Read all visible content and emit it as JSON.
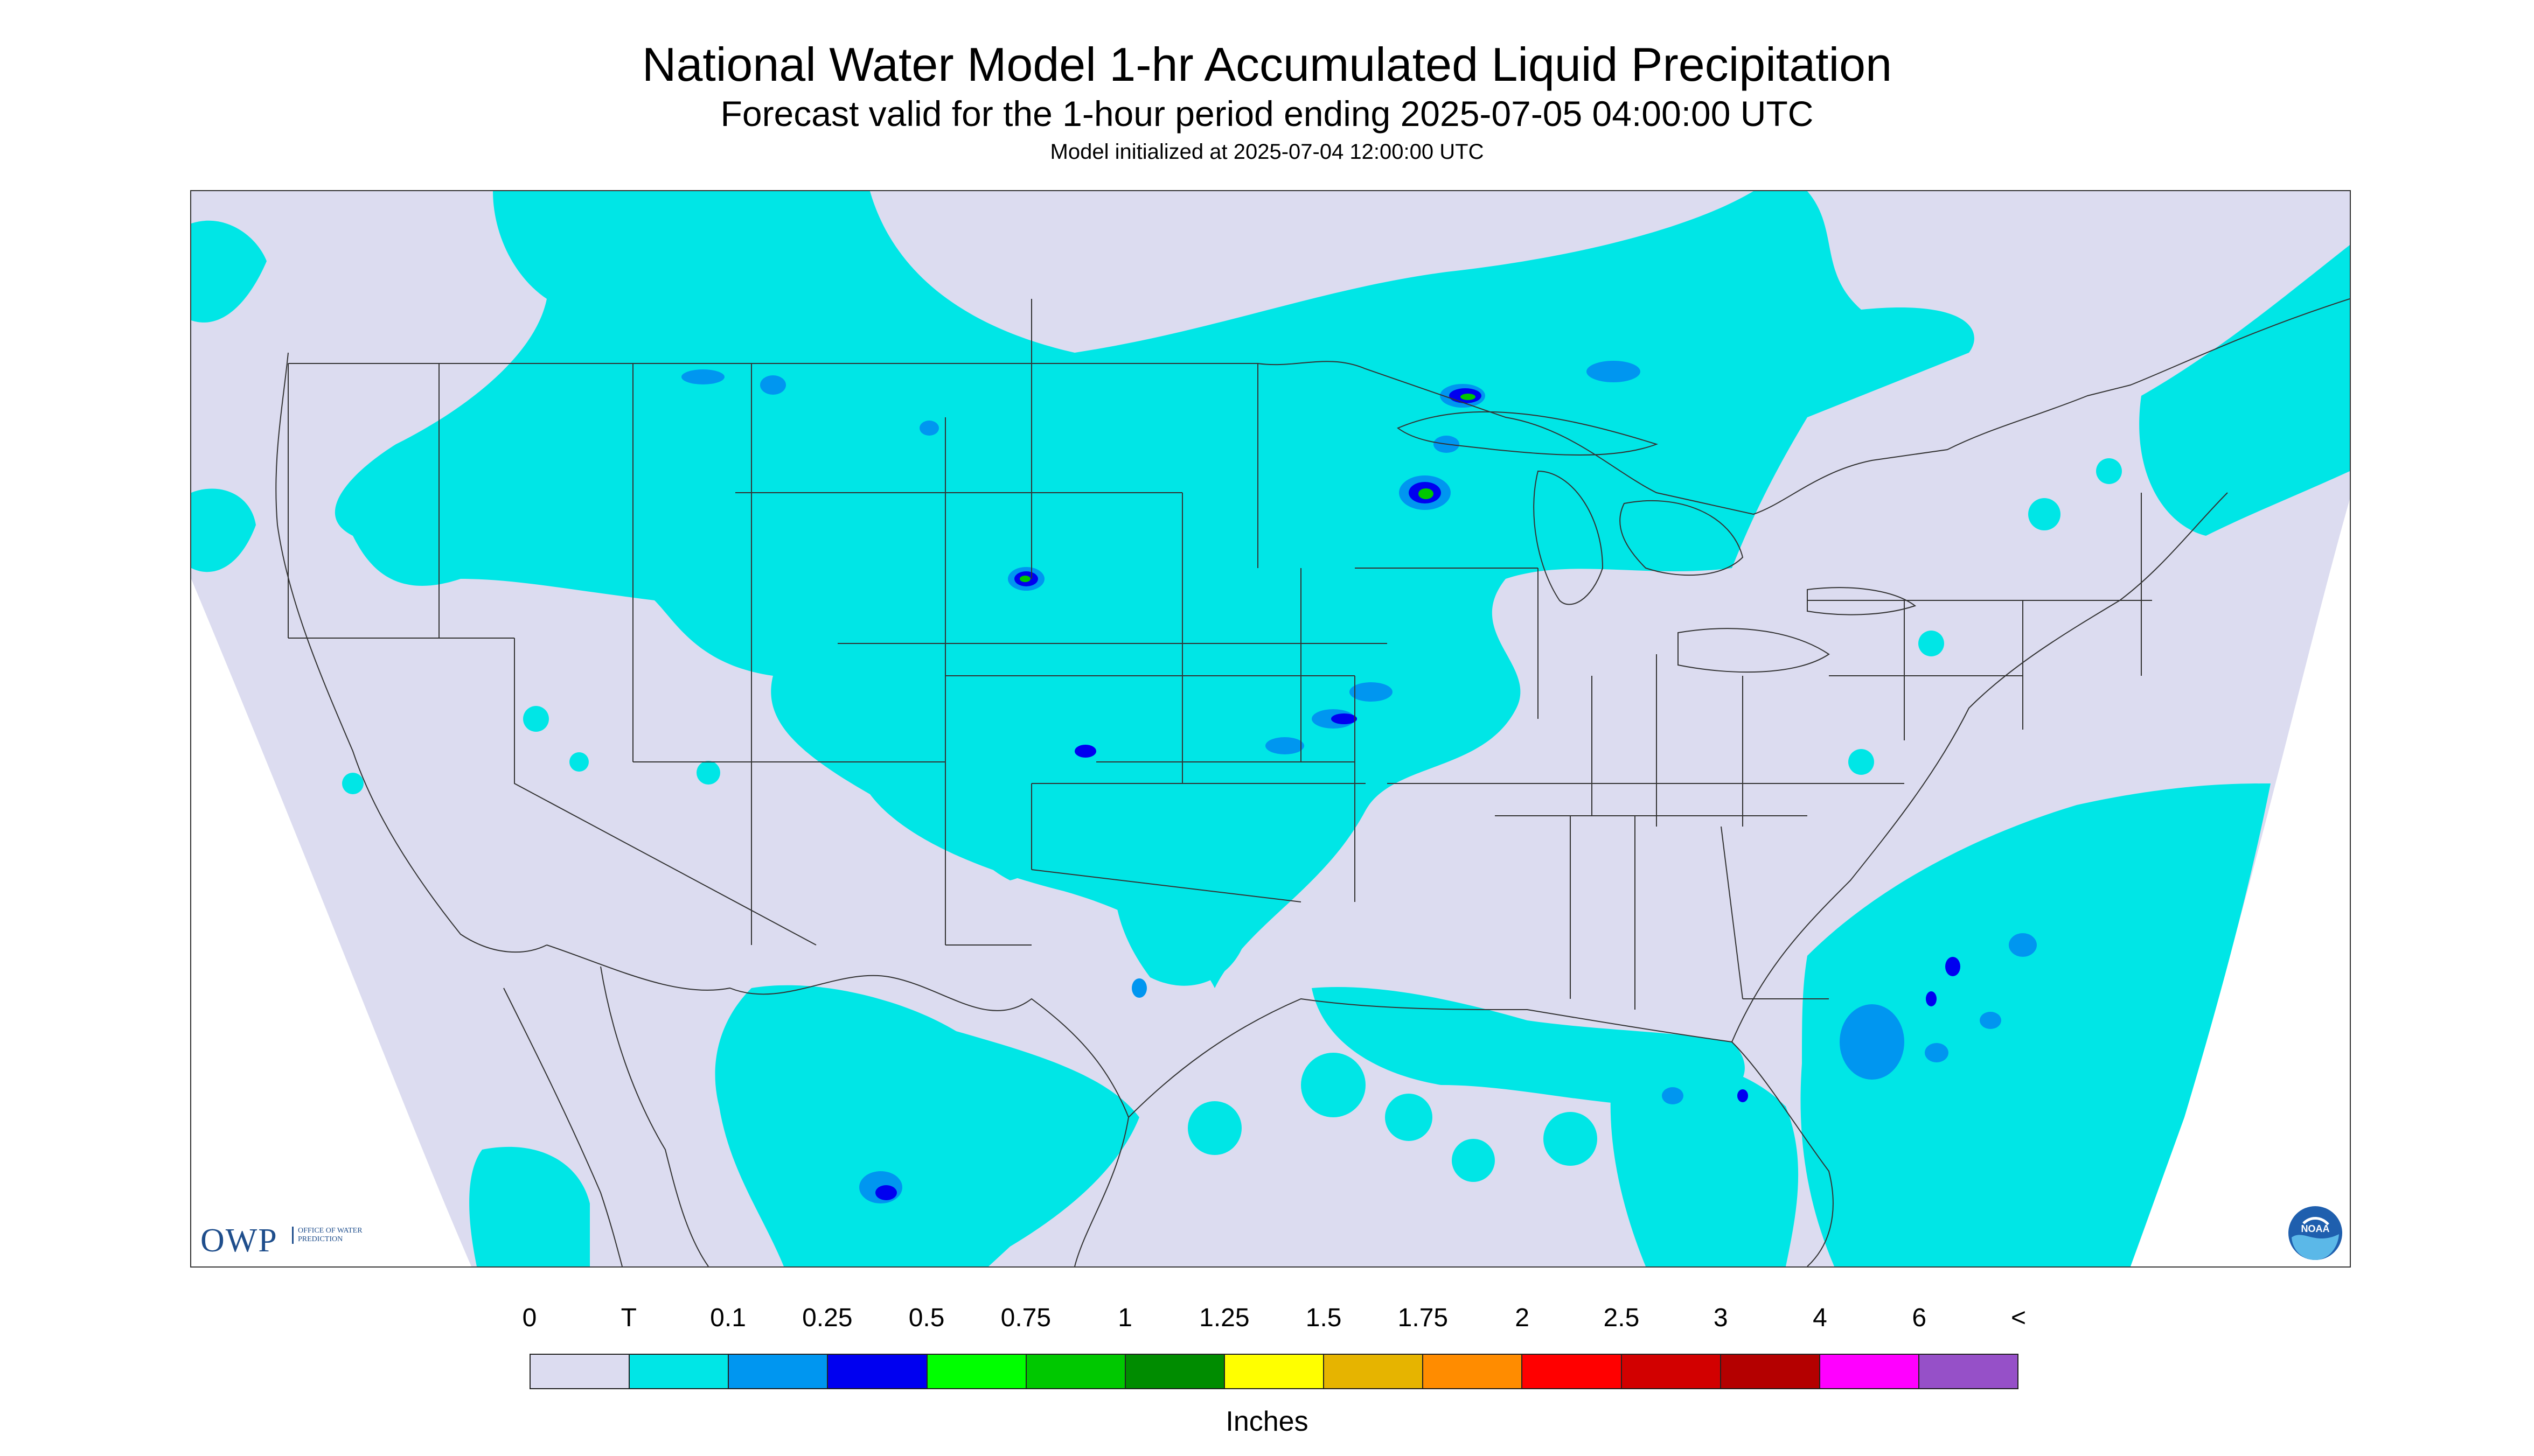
{
  "header": {
    "title": "National Water Model 1-hr Accumulated Liquid Precipitation",
    "subtitle": "Forecast valid for the 1-hour period ending 2025-07-05 04:00:00 UTC",
    "init": "Model initialized at 2025-07-04 12:00:00 UTC"
  },
  "logos": {
    "owp": "OWP",
    "owp_full": "OFFICE OF WATER PREDICTION",
    "noaa": "NOAA"
  },
  "legend": {
    "tick_labels": [
      "0",
      "T",
      "0.1",
      "0.25",
      "0.5",
      "0.75",
      "1",
      "1.25",
      "1.5",
      "1.75",
      "2",
      "2.5",
      "3",
      "4",
      "6",
      "<"
    ],
    "colors": [
      "#dcdcf0",
      "#00e6e6",
      "#0096f0",
      "#0000f0",
      "#00ff00",
      "#00c800",
      "#008c00",
      "#ffff00",
      "#e6b400",
      "#ff8c00",
      "#ff0000",
      "#d20000",
      "#b40000",
      "#ff00ff",
      "#9650c8"
    ],
    "units": "Inches"
  },
  "map": {
    "colors": {
      "land": "#dcdcf0",
      "outside": "#ffffff",
      "trace": "#00e6e6",
      "light": "#0096f0",
      "moderate": "#0000f0",
      "heavy": "#00c800",
      "border": "#333333"
    }
  }
}
